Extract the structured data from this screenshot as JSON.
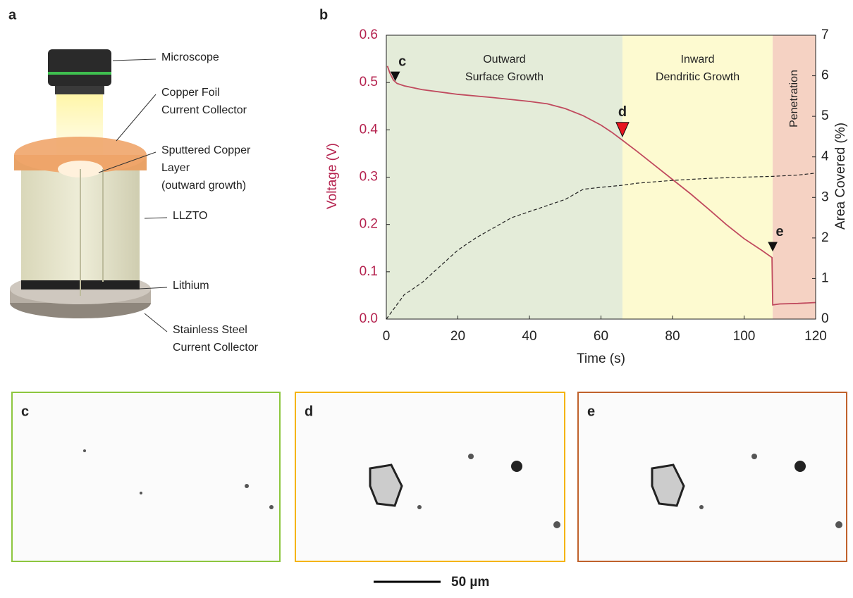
{
  "diagram": {
    "panel_label": "a",
    "labels": [
      {
        "lines": [
          "Microscope"
        ]
      },
      {
        "lines": [
          "Copper Foil",
          "Current Collector"
        ]
      },
      {
        "lines": [
          "Sputtered Copper",
          "Layer",
          "(outward growth)"
        ]
      },
      {
        "lines": [
          "LLZTO"
        ]
      },
      {
        "lines": [
          "Lithium"
        ]
      },
      {
        "lines": [
          "Stainless Steel",
          "Current Collector"
        ]
      }
    ]
  },
  "chart_data": {
    "type": "line",
    "panel_label": "b",
    "x_label": "Time (s)",
    "y_label": "Voltage (V)",
    "y2_label": "Area Covered (%)",
    "xlim": [
      0,
      120
    ],
    "xticks": [
      0,
      20,
      40,
      60,
      80,
      100,
      120
    ],
    "ylim": [
      0,
      0.6
    ],
    "yticks": [
      {
        "value": 0,
        "label": "0.0"
      },
      0.1,
      0.2,
      0.3,
      0.4,
      0.5,
      0.6
    ],
    "y2lim": [
      0,
      7
    ],
    "y2ticks": [
      0,
      1,
      2,
      3,
      4,
      5,
      6,
      7
    ],
    "y_color": "#b5234f",
    "regions": [
      {
        "start": 0,
        "end": 66,
        "color": "#e4ecd9",
        "lines": [
          "Outward",
          "Surface Growth"
        ]
      },
      {
        "start": 66,
        "end": 108,
        "color": "#fdfad0",
        "lines": [
          "Inward",
          "Dendritic Growth"
        ]
      },
      {
        "start": 108,
        "end": 120,
        "color": "#f5d2c3",
        "lines": [
          "Penetration"
        ]
      }
    ],
    "series": [
      {
        "color": "#c04a5e",
        "dash": false,
        "x": [
          0.3,
          1,
          2,
          3,
          5,
          10,
          20,
          30,
          40,
          45,
          50,
          55,
          60,
          63,
          66,
          70,
          75,
          80,
          85,
          90,
          95,
          100,
          105,
          107.8,
          108,
          110,
          115,
          120
        ],
        "values": [
          0.535,
          0.52,
          0.505,
          0.498,
          0.493,
          0.485,
          0.475,
          0.468,
          0.46,
          0.455,
          0.445,
          0.43,
          0.41,
          0.395,
          0.378,
          0.355,
          0.325,
          0.295,
          0.265,
          0.233,
          0.2,
          0.17,
          0.145,
          0.13,
          0.03,
          0.032,
          0.033,
          0.035
        ]
      },
      {
        "color": "#222222",
        "dash": true,
        "axis": "y2",
        "x": [
          0,
          5,
          10,
          15,
          20,
          25,
          30,
          35,
          40,
          45,
          50,
          55,
          60,
          66,
          70,
          80,
          90,
          100,
          108,
          115,
          120
        ],
        "values": [
          0,
          0.6,
          0.9,
          1.3,
          1.7,
          2.0,
          2.25,
          2.5,
          2.65,
          2.8,
          2.95,
          3.2,
          3.25,
          3.3,
          3.35,
          3.42,
          3.47,
          3.5,
          3.52,
          3.55,
          3.6
        ]
      }
    ],
    "annotations": [
      {
        "text": "c",
        "x": 2.5,
        "y": 0.5,
        "color": "#111111"
      },
      {
        "text": "d",
        "x": 66,
        "y": 0.38,
        "color": "#e8141e"
      },
      {
        "text": "e",
        "x": 108,
        "y": 0.14,
        "color": "#111111"
      }
    ]
  },
  "micrographs": [
    {
      "label": "c"
    },
    {
      "label": "d"
    },
    {
      "label": "e"
    }
  ],
  "scale_bar": "50 µm"
}
